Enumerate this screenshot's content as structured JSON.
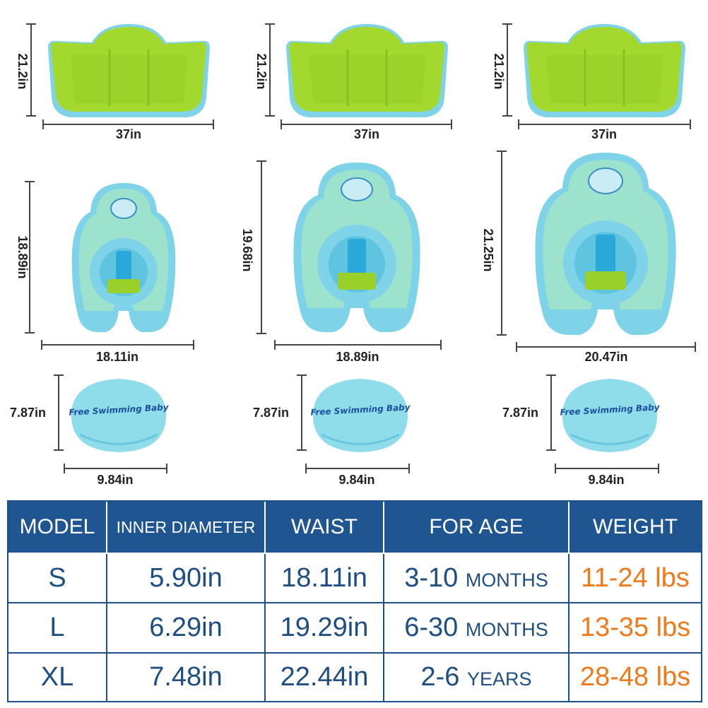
{
  "products": [
    {
      "model": "S",
      "canopy": {
        "height": "21.2in",
        "width": "37in"
      },
      "float": {
        "height": "18.89in",
        "width": "18.11in"
      },
      "pillow": {
        "height": "7.87in",
        "width": "9.84in"
      }
    },
    {
      "model": "L",
      "canopy": {
        "height": "21.2in",
        "width": "37in"
      },
      "float": {
        "height": "19.68in",
        "width": "18.89in"
      },
      "pillow": {
        "height": "7.87in",
        "width": "9.84in"
      }
    },
    {
      "model": "XL",
      "canopy": {
        "height": "21.2in",
        "width": "37in"
      },
      "float": {
        "height": "21.25in",
        "width": "20.47in"
      },
      "pillow": {
        "height": "7.87in",
        "width": "9.84in"
      }
    }
  ],
  "brand_text": "Free Swimming Baby",
  "table": {
    "headers": {
      "model": "MODEL",
      "inner_diameter": "INNER DIAMETER",
      "waist": "WAIST",
      "age": "FOR AGE",
      "weight": "WEIGHT"
    },
    "rows": [
      {
        "model": "S",
        "inner_diameter": "5.90in",
        "waist": "18.11in",
        "age_value": "3-10",
        "age_unit": "MONTHS",
        "weight": "11-24 lbs"
      },
      {
        "model": "L",
        "inner_diameter": "6.29in",
        "waist": "19.29in",
        "age_value": "6-30",
        "age_unit": "MONTHS",
        "weight": "13-35 lbs"
      },
      {
        "model": "XL",
        "inner_diameter": "7.48in",
        "waist": "22.44in",
        "age_value": "2-6",
        "age_unit": "YEARS",
        "weight": "28-48 lbs"
      }
    ]
  },
  "colors": {
    "header_bg": "#1f5590",
    "table_text": "#1f4e82",
    "weight_text": "#f07a1a",
    "canopy_green": "#a3d92e",
    "float_blue": "#7fd3e8"
  }
}
